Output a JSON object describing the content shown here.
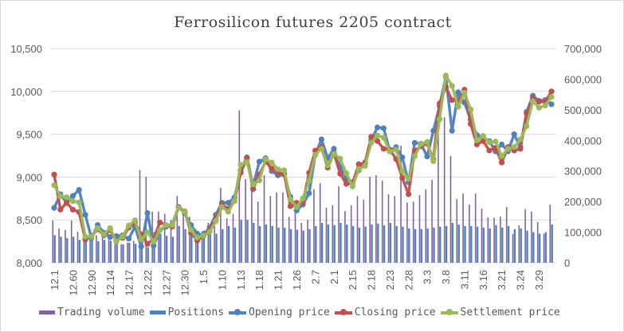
{
  "chart_data": {
    "type": "combo bar-line",
    "title": "Ferrosilicon futures 2205 contract",
    "left_axis": {
      "ticks": [
        "8,000",
        "8,500",
        "9,000",
        "9,500",
        "10,000",
        "10,500"
      ],
      "range": [
        8000,
        10500
      ]
    },
    "right_axis": {
      "ticks": [
        "0",
        "100,000",
        "200,000",
        "300,000",
        "400,000",
        "500,000",
        "600,000",
        "700,000"
      ],
      "range": [
        0,
        700000
      ]
    },
    "x_tick_labels": [
      "12.1",
      "12.60",
      "12.90",
      "12.14",
      "12.17",
      "12.22",
      "12.27",
      "12.30",
      "1.5",
      "1.10",
      "1.13",
      "1.18",
      "1.21",
      "1.26",
      "2.7",
      "2.1",
      "2.15",
      "2.18",
      "2.23",
      "2.28",
      "3.3",
      "3.8",
      "3.11",
      "3.16",
      "3.21",
      "3.24",
      "3.29"
    ],
    "grid": true,
    "legend_position": "bottom",
    "series": [
      {
        "name": "Trading volume",
        "type": "bar",
        "axis": "right",
        "color": "#8064a2",
        "values": [
          138000,
          112000,
          107000,
          138000,
          101000,
          95000,
          101000,
          90000,
          83000,
          80000,
          70000,
          60000,
          66000,
          72000,
          303000,
          281000,
          167000,
          167000,
          160000,
          140000,
          218000,
          175000,
          150000,
          110000,
          103000,
          131000,
          150000,
          245000,
          145000,
          160000,
          498000,
          273000,
          240000,
          200000,
          286000,
          218000,
          230000,
          230000,
          150000,
          165000,
          130000,
          140000,
          240000,
          260000,
          180000,
          188000,
          250000,
          169000,
          188000,
          218000,
          206000,
          281000,
          286000,
          268000,
          224000,
          218000,
          383000,
          197000,
          200000,
          221000,
          240000,
          271000,
          422000,
          475000,
          349000,
          208000,
          226000,
          190000,
          226000,
          177000,
          148000,
          147000,
          151000,
          182000,
          94000,
          122000,
          175000,
          167000,
          133000,
          95000,
          190000
        ]
      },
      {
        "name": "Positions",
        "type": "bar",
        "axis": "right",
        "color": "#4f81bd",
        "values": [
          90000,
          85000,
          80000,
          85000,
          75000,
          80000,
          75000,
          70000,
          75000,
          72000,
          70000,
          60000,
          65000,
          62000,
          60000,
          50000,
          100000,
          95000,
          88000,
          85000,
          120000,
          110000,
          115000,
          100000,
          105000,
          100000,
          95000,
          110000,
          120000,
          115000,
          140000,
          140000,
          130000,
          120000,
          125000,
          120000,
          115000,
          115000,
          110000,
          108000,
          105000,
          110000,
          120000,
          130000,
          125000,
          123000,
          130000,
          125000,
          120000,
          115000,
          118000,
          125000,
          128000,
          122000,
          130000,
          120000,
          118000,
          112000,
          110000,
          110000,
          112000,
          115000,
          118000,
          120000,
          130000,
          125000,
          120000,
          120000,
          118000,
          115000,
          112000,
          123000,
          115000,
          120000,
          110000,
          112000,
          105000,
          100000,
          95000,
          100000,
          125000
        ]
      },
      {
        "name": "Opening price",
        "type": "line",
        "axis": "left",
        "color": "#4f81bd",
        "values": [
          8640,
          8800,
          8700,
          8780,
          8850,
          8560,
          8290,
          8440,
          8350,
          8300,
          8310,
          8320,
          8280,
          8420,
          8190,
          8580,
          8200,
          8380,
          8420,
          8450,
          8650,
          8580,
          8440,
          8340,
          8320,
          8410,
          8560,
          8700,
          8700,
          8760,
          9080,
          9230,
          8900,
          9180,
          9220,
          9070,
          9020,
          9030,
          8770,
          8610,
          8680,
          8810,
          9260,
          9440,
          9220,
          9330,
          9120,
          8980,
          8940,
          9080,
          9170,
          9430,
          9580,
          9570,
          9300,
          9350,
          9230,
          8940,
          9400,
          9390,
          9240,
          9540,
          9830,
          10170,
          9540,
          9990,
          9870,
          9670,
          9490,
          9460,
          9420,
          9300,
          9380,
          9300,
          9500,
          9350,
          9760,
          9950,
          9890,
          9900,
          9850
        ]
      },
      {
        "name": "Closing price",
        "type": "line",
        "axis": "left",
        "color": "#c0504d",
        "values": [
          9030,
          8620,
          8700,
          8620,
          8590,
          8270,
          8310,
          8390,
          8320,
          8380,
          8260,
          8290,
          8410,
          8470,
          8330,
          8220,
          8280,
          8470,
          8440,
          8420,
          8650,
          8600,
          8350,
          8260,
          8310,
          8390,
          8520,
          8680,
          8630,
          8720,
          9050,
          9220,
          8860,
          9030,
          9180,
          9100,
          9050,
          9040,
          8660,
          8700,
          8700,
          9050,
          9310,
          9350,
          9110,
          9280,
          9040,
          8920,
          8930,
          9150,
          9160,
          9470,
          9420,
          9330,
          9320,
          9210,
          8990,
          8800,
          9310,
          9360,
          9390,
          9210,
          9860,
          10050,
          9900,
          9880,
          10020,
          9620,
          9380,
          9420,
          9310,
          9340,
          9170,
          9350,
          9310,
          9330,
          9740,
          9920,
          9880,
          9880,
          10000
        ]
      },
      {
        "name": "Settlement price",
        "type": "line",
        "axis": "left",
        "color": "#9bbb59",
        "values": [
          8905,
          8775,
          8765,
          8720,
          8705,
          8305,
          8305,
          8405,
          8330,
          8405,
          8245,
          8305,
          8435,
          8495,
          8270,
          8355,
          8245,
          8380,
          8440,
          8440,
          8640,
          8595,
          8385,
          8295,
          8315,
          8360,
          8485,
          8650,
          8595,
          8720,
          9145,
          9175,
          8915,
          8960,
          9210,
          9170,
          9090,
          9080,
          8740,
          8650,
          8750,
          8955,
          9260,
          9330,
          9135,
          9270,
          9215,
          9045,
          8890,
          9095,
          9130,
          9400,
          9485,
          9460,
          9300,
          9320,
          9070,
          8980,
          9245,
          9385,
          9410,
          9185,
          9675,
          10185,
          10065,
          9820,
          9985,
          9790,
          9430,
          9480,
          9405,
          9415,
          9245,
          9330,
          9350,
          9440,
          9595,
          9885,
          9810,
          9835,
          9935
        ]
      }
    ]
  }
}
